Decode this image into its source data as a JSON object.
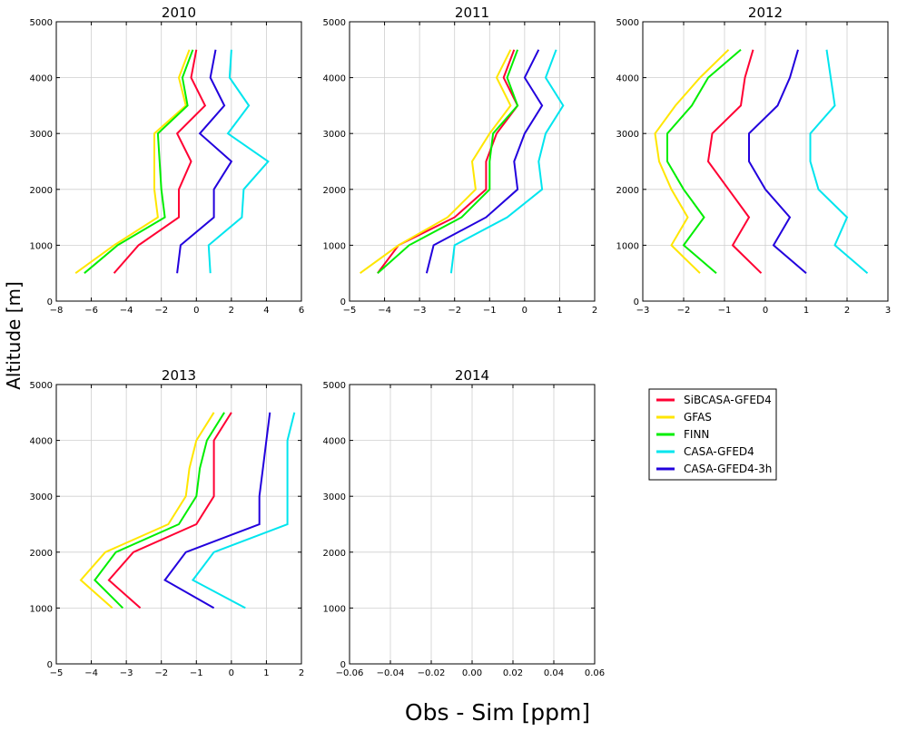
{
  "figure": {
    "ylabel": "Altitude [m]",
    "xlabel": "Obs - Sim [ppm]"
  },
  "legend": {
    "placement": "right",
    "entries": [
      {
        "name": "SiBCASA-GFED4",
        "color": "#ff0033"
      },
      {
        "name": "GFAS",
        "color": "#ffe600"
      },
      {
        "name": "FINN",
        "color": "#00ee00"
      },
      {
        "name": "CASA-GFED4",
        "color": "#00e5ee"
      },
      {
        "name": "CASA-GFED4-3h",
        "color": "#2200dd"
      }
    ]
  },
  "chart_data": [
    {
      "type": "line",
      "title": "2010",
      "grid": true,
      "xlim": [
        -8,
        6
      ],
      "ylim": [
        0,
        5000
      ],
      "xticks": [
        "−8",
        "−6",
        "−4",
        "−2",
        "0",
        "2",
        "4",
        "6"
      ],
      "yticks": [
        "0",
        "1000",
        "2000",
        "3000",
        "4000",
        "5000"
      ],
      "series": [
        {
          "name": "SiBCASA-GFED4",
          "x": [
            -4.7,
            -3.3,
            -1.0,
            -1.0,
            -0.3,
            -1.1,
            0.5,
            -0.3,
            0.0
          ],
          "y": [
            500,
            1000,
            1500,
            2000,
            2500,
            3000,
            3500,
            4000,
            4500
          ]
        },
        {
          "name": "GFAS",
          "x": [
            -6.9,
            -4.7,
            -2.2,
            -2.4,
            -2.4,
            -2.4,
            -0.6,
            -1.0,
            -0.4
          ],
          "y": [
            500,
            1000,
            1500,
            2000,
            2500,
            3000,
            3500,
            4000,
            4500
          ]
        },
        {
          "name": "FINN",
          "x": [
            -6.4,
            -4.5,
            -1.8,
            -2.0,
            -2.1,
            -2.2,
            -0.5,
            -0.8,
            -0.2
          ],
          "y": [
            500,
            1000,
            1500,
            2000,
            2500,
            3000,
            3500,
            4000,
            4500
          ]
        },
        {
          "name": "CASA-GFED4",
          "x": [
            0.8,
            0.7,
            2.6,
            2.7,
            4.1,
            1.8,
            3.0,
            1.9,
            2.0
          ],
          "y": [
            500,
            1000,
            1500,
            2000,
            2500,
            3000,
            3500,
            4000,
            4500
          ]
        },
        {
          "name": "CASA-GFED4-3h",
          "x": [
            -1.1,
            -0.9,
            1.0,
            1.0,
            2.0,
            0.2,
            1.6,
            0.8,
            1.1
          ],
          "y": [
            500,
            1000,
            1500,
            2000,
            2500,
            3000,
            3500,
            4000,
            4500
          ]
        }
      ]
    },
    {
      "type": "line",
      "title": "2011",
      "grid": true,
      "xlim": [
        -5,
        2
      ],
      "ylim": [
        0,
        5000
      ],
      "xticks": [
        "−5",
        "−4",
        "−3",
        "−2",
        "−1",
        "0",
        "1",
        "2"
      ],
      "yticks": [
        "0",
        "1000",
        "2000",
        "3000",
        "4000",
        "5000"
      ],
      "series": [
        {
          "name": "SiBCASA-GFED4",
          "x": [
            -4.2,
            -3.6,
            -2.0,
            -1.1,
            -1.1,
            -0.8,
            -0.2,
            -0.6,
            -0.3
          ],
          "y": [
            500,
            1000,
            1500,
            2000,
            2500,
            3000,
            3500,
            4000,
            4500
          ]
        },
        {
          "name": "GFAS",
          "x": [
            -4.7,
            -3.6,
            -2.2,
            -1.4,
            -1.5,
            -1.0,
            -0.4,
            -0.8,
            -0.4
          ],
          "y": [
            500,
            1000,
            1500,
            2000,
            2500,
            3000,
            3500,
            4000,
            4500
          ]
        },
        {
          "name": "FINN",
          "x": [
            -4.2,
            -3.3,
            -1.8,
            -1.0,
            -1.0,
            -0.9,
            -0.2,
            -0.5,
            -0.2
          ],
          "y": [
            500,
            1000,
            1500,
            2000,
            2500,
            3000,
            3500,
            4000,
            4500
          ]
        },
        {
          "name": "CASA-GFED4",
          "x": [
            -2.1,
            -2.0,
            -0.5,
            0.5,
            0.4,
            0.6,
            1.1,
            0.6,
            0.9
          ],
          "y": [
            500,
            1000,
            1500,
            2000,
            2500,
            3000,
            3500,
            4000,
            4500
          ]
        },
        {
          "name": "CASA-GFED4-3h",
          "x": [
            -2.8,
            -2.6,
            -1.1,
            -0.2,
            -0.3,
            0.0,
            0.5,
            0.0,
            0.4
          ],
          "y": [
            500,
            1000,
            1500,
            2000,
            2500,
            3000,
            3500,
            4000,
            4500
          ]
        }
      ]
    },
    {
      "type": "line",
      "title": "2012",
      "grid": true,
      "xlim": [
        -3,
        3
      ],
      "ylim": [
        0,
        5000
      ],
      "xticks": [
        "−3",
        "−2",
        "−1",
        "0",
        "1",
        "2",
        "3"
      ],
      "yticks": [
        "0",
        "1000",
        "2000",
        "3000",
        "4000",
        "5000"
      ],
      "series": [
        {
          "name": "SiBCASA-GFED4",
          "x": [
            -0.1,
            -0.8,
            -0.4,
            -0.9,
            -1.4,
            -1.3,
            -0.6,
            -0.5,
            -0.3
          ],
          "y": [
            500,
            1000,
            1500,
            2000,
            2500,
            3000,
            3500,
            4000,
            4500
          ]
        },
        {
          "name": "GFAS",
          "x": [
            -1.6,
            -2.3,
            -1.9,
            -2.3,
            -2.6,
            -2.7,
            -2.2,
            -1.6,
            -0.9
          ],
          "y": [
            500,
            1000,
            1500,
            2000,
            2500,
            3000,
            3500,
            4000,
            4500
          ]
        },
        {
          "name": "FINN",
          "x": [
            -1.2,
            -2.0,
            -1.5,
            -2.0,
            -2.4,
            -2.4,
            -1.8,
            -1.4,
            -0.6
          ],
          "y": [
            500,
            1000,
            1500,
            2000,
            2500,
            3000,
            3500,
            4000,
            4500
          ]
        },
        {
          "name": "CASA-GFED4",
          "x": [
            2.5,
            1.7,
            2.0,
            1.3,
            1.1,
            1.1,
            1.7,
            1.6,
            1.5
          ],
          "y": [
            500,
            1000,
            1500,
            2000,
            2500,
            3000,
            3500,
            4000,
            4500
          ]
        },
        {
          "name": "CASA-GFED4-3h",
          "x": [
            1.0,
            0.2,
            0.6,
            0.0,
            -0.4,
            -0.4,
            0.3,
            0.6,
            0.8
          ],
          "y": [
            500,
            1000,
            1500,
            2000,
            2500,
            3000,
            3500,
            4000,
            4500
          ]
        }
      ]
    },
    {
      "type": "line",
      "title": "2013",
      "grid": true,
      "xlim": [
        -5,
        2
      ],
      "ylim": [
        0,
        5000
      ],
      "xticks": [
        "−5",
        "−4",
        "−3",
        "−2",
        "−1",
        "0",
        "1",
        "2"
      ],
      "yticks": [
        "0",
        "1000",
        "2000",
        "3000",
        "4000",
        "5000"
      ],
      "series": [
        {
          "name": "SiBCASA-GFED4",
          "x": [
            -2.6,
            -3.5,
            -2.8,
            -1.0,
            -0.5,
            -0.5,
            -0.5,
            0.0
          ],
          "y": [
            1000,
            1500,
            2000,
            2500,
            3000,
            3500,
            4000,
            4500
          ]
        },
        {
          "name": "GFAS",
          "x": [
            -3.4,
            -4.3,
            -3.6,
            -1.8,
            -1.3,
            -1.2,
            -1.0,
            -0.5
          ],
          "y": [
            1000,
            1500,
            2000,
            2500,
            3000,
            3500,
            4000,
            4500
          ]
        },
        {
          "name": "FINN",
          "x": [
            -3.1,
            -3.9,
            -3.3,
            -1.5,
            -1.0,
            -0.9,
            -0.7,
            -0.2
          ],
          "y": [
            1000,
            1500,
            2000,
            2500,
            3000,
            3500,
            4000,
            4500
          ]
        },
        {
          "name": "CASA-GFED4",
          "x": [
            0.4,
            -1.1,
            -0.5,
            1.6,
            1.6,
            1.6,
            1.6,
            1.8
          ],
          "y": [
            1000,
            1500,
            2000,
            2500,
            3000,
            3500,
            4000,
            4500
          ]
        },
        {
          "name": "CASA-GFED4-3h",
          "x": [
            -0.5,
            -1.9,
            -1.3,
            0.8,
            0.8,
            0.9,
            1.0,
            1.1
          ],
          "y": [
            1000,
            1500,
            2000,
            2500,
            3000,
            3500,
            4000,
            4500
          ]
        }
      ]
    },
    {
      "type": "line",
      "title": "2014",
      "grid": true,
      "xlim": [
        -0.06,
        0.06
      ],
      "ylim": [
        0,
        5000
      ],
      "xticks": [
        "−0.06",
        "−0.04",
        "−0.02",
        "0.00",
        "0.02",
        "0.04",
        "0.06"
      ],
      "yticks": [
        "0",
        "1000",
        "2000",
        "3000",
        "4000",
        "5000"
      ],
      "series": []
    }
  ]
}
